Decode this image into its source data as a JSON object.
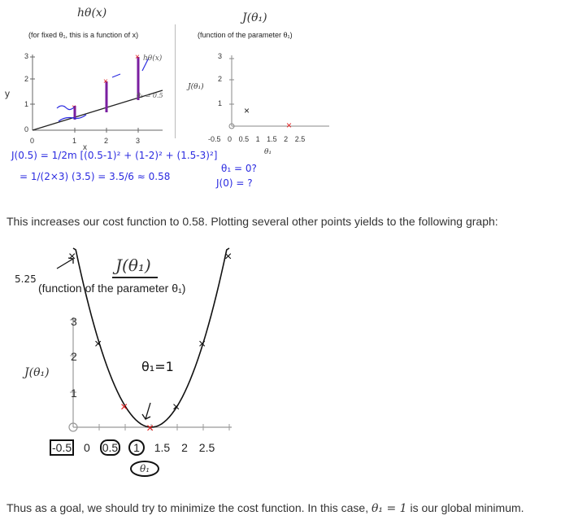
{
  "top_left": {
    "title": "hθ(x)",
    "subtitle": "(for fixed θ₁, this is a function of x)",
    "y_axis_label": "y",
    "x_axis_label": "x",
    "x_ticks": [
      "0",
      "1",
      "2",
      "3"
    ],
    "y_ticks": [
      "0",
      "1",
      "2",
      "3"
    ],
    "curve_label": "hθ(x)",
    "theta_label": "θ₁ = 0.5"
  },
  "top_right": {
    "title": "J(θ₁)",
    "subtitle": "(function of the parameter θ₁)",
    "y_axis_label": "J(θ₁)",
    "x_axis_label": "θ₁",
    "x_ticks": [
      "-0.5",
      "0",
      "0.5",
      "1",
      "1.5",
      "2",
      "2.5"
    ],
    "y_ticks": [
      "1",
      "2",
      "3"
    ]
  },
  "handwriting": {
    "line1": "J(0.5) = 1/2m [(0.5-1)² + (1-2)² + (1.5-3)²]",
    "line2": "= 1/(2×3) (3.5) = 3.5/6 ≈ 0.58",
    "right1": "θ₁ = 0?",
    "right2": "J(0) = ?",
    "bottom_left": "5.25",
    "theta_note": "θ₁=1"
  },
  "paragraph1": "This increases our cost function to 0.58. Plotting several other points yields to the following graph:",
  "big_chart": {
    "title": "J(θ₁)",
    "subtitle": "(function of the parameter θ₁)",
    "y_axis_label": "J(θ₁)",
    "x_axis_label": "θ₁",
    "x_ticks": [
      "-0.5",
      "0",
      "0.5",
      "1",
      "1.5",
      "2",
      "2.5"
    ],
    "y_ticks": [
      "1",
      "2",
      "3"
    ]
  },
  "paragraph2_pre": "Thus as a goal, we should try to minimize the cost function. In this case, ",
  "paragraph2_math": "θ₁ = 1",
  "paragraph2_post": " is our global minimum.",
  "colors": {
    "ink": "#2b2be0",
    "red": "#e01a1a",
    "plot": "#7a1fa0"
  },
  "chart_data": [
    {
      "type": "line",
      "x": [
        -0.5,
        0,
        0.5,
        1,
        1.5,
        2,
        2.5
      ],
      "y": [
        5.25,
        2.33,
        0.58,
        0,
        0.58,
        2.33,
        5.25
      ],
      "xlabel": "θ₁",
      "ylabel": "J(θ₁)"
    }
  ]
}
